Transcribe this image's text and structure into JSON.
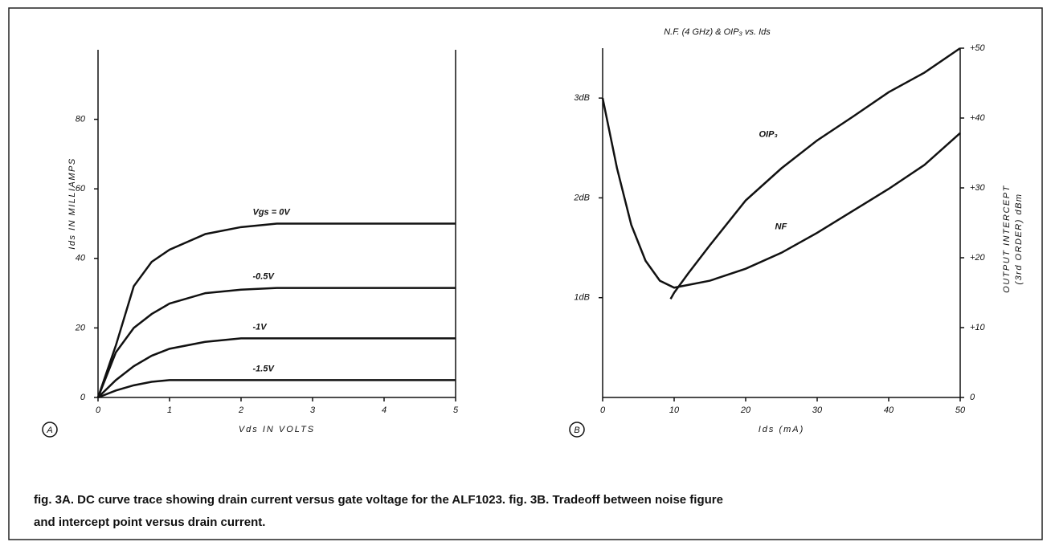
{
  "chart_data": [
    {
      "type": "line",
      "xlabel": "Vds IN VOLTS",
      "ylabel": "Ids IN MILLIAMPS",
      "panel": "A",
      "x": [
        0,
        0.25,
        0.5,
        0.75,
        1,
        1.5,
        2,
        2.5,
        3,
        4,
        5
      ],
      "series": [
        {
          "name": "Vgs = 0V",
          "color": "#111",
          "values": [
            0,
            15,
            32,
            39,
            42.5,
            47,
            49,
            50,
            50,
            50,
            50
          ]
        },
        {
          "name": "-0.5V",
          "color": "#111",
          "values": [
            0,
            13,
            20,
            24,
            27,
            30,
            31,
            31.5,
            31.5,
            31.5,
            31.5
          ]
        },
        {
          "name": "-1V",
          "color": "#111",
          "values": [
            0,
            5,
            9,
            12,
            14,
            16,
            17,
            17,
            17,
            17,
            17
          ]
        },
        {
          "name": "-1.5V",
          "color": "#111",
          "values": [
            0,
            2,
            3.5,
            4.5,
            5,
            5,
            5,
            5,
            5,
            5,
            5
          ]
        }
      ],
      "xlim": [
        0,
        5
      ],
      "xticks": [
        0,
        1,
        2,
        3,
        4,
        5
      ],
      "ylim": [
        0,
        100
      ],
      "yticks": [
        0,
        20,
        40,
        60,
        80
      ]
    },
    {
      "type": "line",
      "title": "N.F. (4 GHz) & OIP₃ vs. Ids",
      "xlabel": "Ids (mA)",
      "y2label": [
        "OUTPUT INTERCEPT",
        "(3rd ORDER) dBm"
      ],
      "panel": "B",
      "series": [
        {
          "name": "OIP₃",
          "color": "#111",
          "axis": "y2",
          "x": [
            9.5,
            10,
            12,
            15,
            20,
            25,
            30,
            35,
            40,
            45,
            50
          ],
          "values": [
            14.1,
            15,
            17.8,
            21.8,
            28.2,
            32.8,
            36.8,
            40.2,
            43.7,
            46.5,
            50
          ]
        },
        {
          "name": "NF",
          "color": "#111",
          "x": [
            0,
            2,
            4,
            6,
            8,
            10,
            15,
            20,
            25,
            30,
            35,
            40,
            45,
            50
          ],
          "values": [
            3.0,
            2.3,
            1.73,
            1.37,
            1.17,
            1.1,
            1.17,
            1.29,
            1.45,
            1.65,
            1.87,
            2.09,
            2.33,
            2.65
          ]
        }
      ],
      "xlim": [
        0,
        50
      ],
      "xticks": [
        0,
        10,
        20,
        30,
        40,
        50
      ],
      "ylim": [
        0,
        3.5
      ],
      "yticks": [
        {
          "value": 1,
          "label": "1dB"
        },
        {
          "value": 2,
          "label": "2dB"
        },
        {
          "value": 3,
          "label": "3dB"
        }
      ],
      "y2lim": [
        0,
        50
      ],
      "y2ticks": [
        0,
        {
          "value": 10,
          "label": "+10"
        },
        {
          "value": 20,
          "label": "+20"
        },
        {
          "value": 30,
          "label": "+30"
        },
        {
          "value": 40,
          "label": "+40"
        },
        {
          "value": 50,
          "label": "+50"
        }
      ]
    }
  ],
  "caption": [
    "fig. 3A. DC curve trace showing drain current versus gate voltage for the ALF1023. fig. 3B. Tradeoff between noise figure",
    "and intercept point versus drain current."
  ]
}
